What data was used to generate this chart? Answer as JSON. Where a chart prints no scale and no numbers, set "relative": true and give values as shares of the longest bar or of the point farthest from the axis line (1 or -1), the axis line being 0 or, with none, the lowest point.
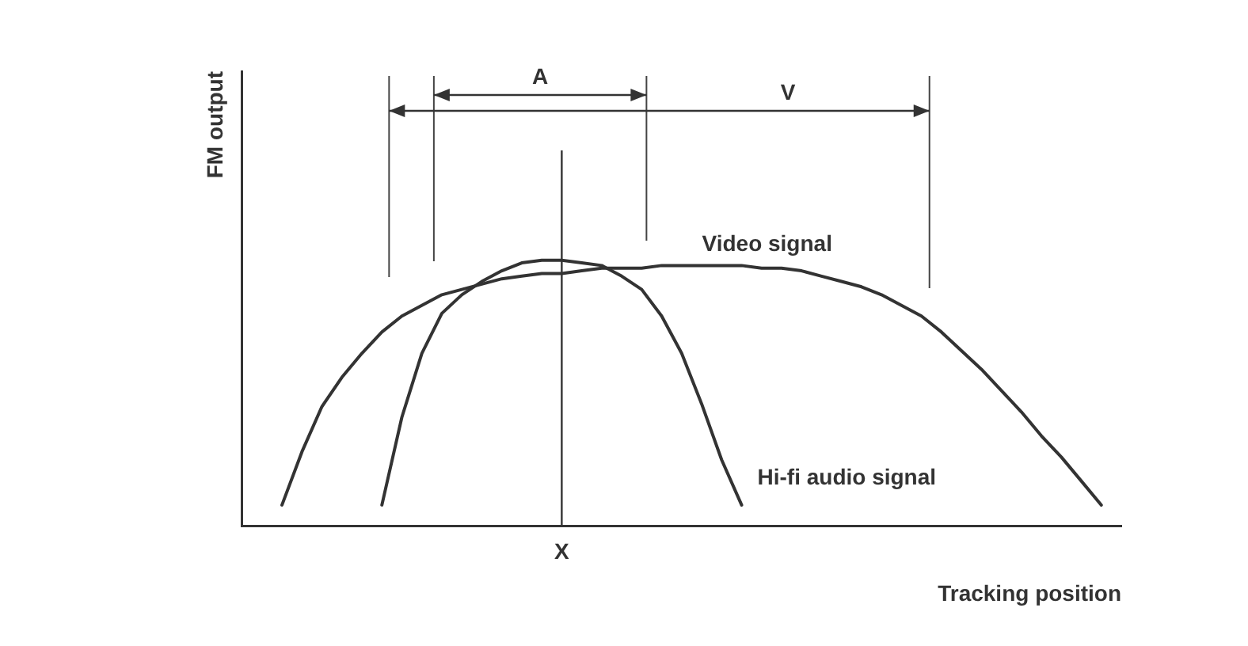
{
  "chart_data": {
    "type": "line",
    "relative": true,
    "xlabel": "Tracking position",
    "ylabel": "FM output",
    "categories": [
      null,
      null,
      null,
      null,
      null,
      null,
      null,
      null,
      null,
      null,
      null,
      null,
      null,
      null,
      null,
      null,
      null,
      null,
      null,
      null,
      null,
      null,
      null,
      null,
      null,
      null,
      null,
      null,
      null,
      null,
      null,
      null,
      null,
      null,
      null,
      null,
      null,
      null,
      null,
      null,
      null,
      null,
      null,
      null,
      null
    ],
    "series": [
      {
        "name": "Video signal",
        "color": "#333333",
        "values": [
          null,
          null,
          0.08,
          0.28,
          0.45,
          0.56,
          0.65,
          0.73,
          0.79,
          0.83,
          0.87,
          0.89,
          0.91,
          0.93,
          0.94,
          0.95,
          0.95,
          0.96,
          0.97,
          0.97,
          0.97,
          0.98,
          0.98,
          0.98,
          0.98,
          0.98,
          0.97,
          0.97,
          0.96,
          0.94,
          0.92,
          0.9,
          0.87,
          0.83,
          0.79,
          0.73,
          0.66,
          0.59,
          0.51,
          0.43,
          0.34,
          0.26,
          0.17,
          0.08,
          null
        ]
      },
      {
        "name": "Hi-fi audio signal",
        "color": "#333333",
        "values": [
          null,
          null,
          null,
          null,
          null,
          null,
          null,
          0.08,
          0.41,
          0.65,
          0.8,
          0.87,
          0.92,
          0.96,
          0.99,
          1,
          1,
          0.99,
          0.98,
          0.94,
          0.89,
          0.79,
          0.65,
          0.46,
          0.25,
          0.08,
          null,
          null,
          null,
          null,
          null,
          null,
          null,
          null,
          null,
          null,
          null,
          null,
          null,
          null,
          null,
          null,
          null,
          null,
          null
        ]
      }
    ],
    "annotations": [
      "A",
      "V",
      "X"
    ],
    "tick_labels": "x",
    "legend": false,
    "marker": "none",
    "line_style": "solid"
  }
}
